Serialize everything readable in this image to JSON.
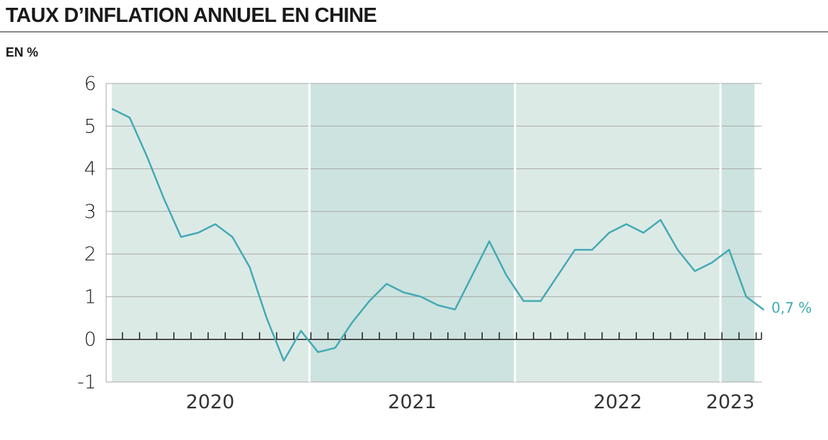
{
  "title": "TAUX D’INFLATION ANNUEL EN CHINE",
  "unit_label": "EN %",
  "colors": {
    "line": "#43aab3",
    "band_light": "#dceae6",
    "band_dark": "#cde3df",
    "grid": "#a8a8a8",
    "axis": "#1a1a1a",
    "text": "#1a1a1a"
  },
  "chart_data": {
    "type": "line",
    "title": "TAUX D’INFLATION ANNUEL EN CHINE",
    "ylabel": "EN %",
    "xlabel": "",
    "ylim": [
      -1,
      6
    ],
    "yticks": [
      "6",
      "5",
      "4",
      "3",
      "2",
      "1",
      "0",
      "-1"
    ],
    "ytick_values": [
      6,
      5,
      4,
      3,
      2,
      1,
      0,
      -1
    ],
    "x_period_labels": [
      "2020",
      "2021",
      "2022",
      "2023"
    ],
    "x_periods": [
      {
        "label": "2020",
        "start": "2020-01",
        "end": "2020-12"
      },
      {
        "label": "2021",
        "start": "2021-01",
        "end": "2021-12"
      },
      {
        "label": "2022",
        "start": "2022-01",
        "end": "2022-12"
      },
      {
        "label": "2023",
        "start": "2023-01",
        "end": "2023-03"
      }
    ],
    "x": [
      "2020-01",
      "2020-02",
      "2020-03",
      "2020-04",
      "2020-05",
      "2020-06",
      "2020-07",
      "2020-08",
      "2020-09",
      "2020-10",
      "2020-11",
      "2020-12",
      "2021-01",
      "2021-02",
      "2021-03",
      "2021-04",
      "2021-05",
      "2021-06",
      "2021-07",
      "2021-08",
      "2021-09",
      "2021-10",
      "2021-11",
      "2021-12",
      "2022-01",
      "2022-02",
      "2022-03",
      "2022-04",
      "2022-05",
      "2022-06",
      "2022-07",
      "2022-08",
      "2022-09",
      "2022-10",
      "2022-11",
      "2022-12",
      "2023-01",
      "2023-02",
      "2023-03"
    ],
    "values": [
      5.4,
      5.2,
      4.3,
      3.3,
      2.4,
      2.5,
      2.7,
      2.4,
      1.7,
      0.5,
      -0.5,
      0.2,
      -0.3,
      -0.2,
      0.4,
      0.9,
      1.3,
      1.1,
      1.0,
      0.8,
      0.7,
      1.5,
      2.3,
      1.5,
      0.9,
      0.9,
      1.5,
      2.1,
      2.1,
      2.5,
      2.7,
      2.5,
      2.8,
      2.1,
      1.6,
      1.8,
      2.1,
      1.0,
      0.7
    ],
    "end_label": "0,7 %",
    "grid": true
  }
}
